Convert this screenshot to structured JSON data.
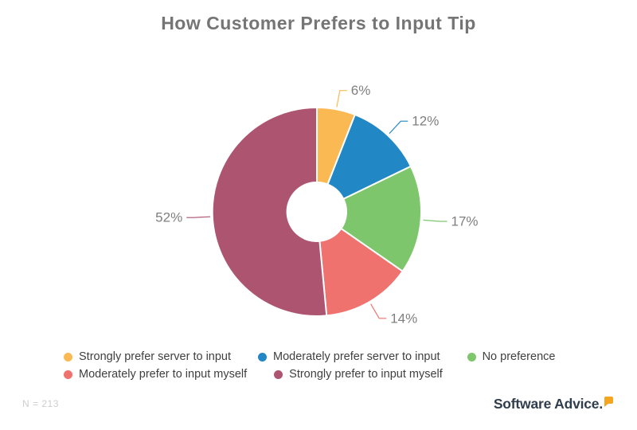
{
  "title": "How Customer Prefers to Input Tip",
  "chart_data": {
    "type": "pie",
    "subtype": "donut",
    "title": "How Customer Prefers to Input Tip",
    "categories": [
      "Strongly prefer server to input",
      "Moderately prefer server to input",
      "No preference",
      "Moderately prefer to input myself",
      "Strongly prefer to input myself"
    ],
    "values": [
      6,
      12,
      17,
      14,
      52
    ],
    "pct_labels": [
      "6%",
      "12%",
      "17%",
      "14%",
      "52%"
    ],
    "colors": [
      "#FBB954",
      "#2187C5",
      "#7EC66B",
      "#F0726F",
      "#AC5470"
    ],
    "start_angle_deg": 0,
    "direction": "clockwise",
    "inner_radius_ratio": 0.28,
    "legend_position": "bottom",
    "label_color": "#7F7F7F"
  },
  "footer": {
    "sample_label": "N = 213",
    "brand": "Software Advice."
  }
}
